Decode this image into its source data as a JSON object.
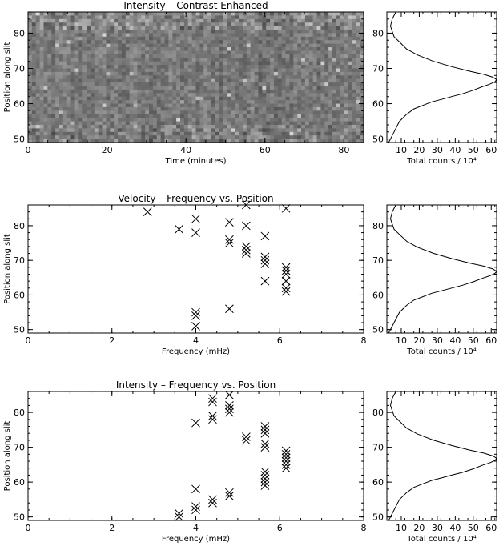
{
  "chart_data": [
    {
      "id": "intensity-image",
      "type": "heatmap",
      "title": "Intensity – Contrast Enhanced",
      "xlabel": "Time (minutes)",
      "ylabel": "Position along slit",
      "xlim": [
        0,
        85
      ],
      "ylim": [
        49,
        86
      ],
      "xticks": [
        0,
        20,
        40,
        60,
        80
      ],
      "yticks": [
        50,
        60,
        70,
        80
      ],
      "colormap": "grayscale"
    },
    {
      "id": "profile-1",
      "type": "line",
      "xlabel": "Total counts / 10⁴",
      "xlim": [
        2,
        63
      ],
      "ylim": [
        49,
        86
      ],
      "xticks": [
        10,
        20,
        30,
        40,
        50,
        60
      ],
      "yticks": [
        50,
        60,
        70,
        80
      ],
      "x": [
        3,
        6,
        9,
        13,
        17,
        22,
        27,
        33,
        38,
        44,
        50,
        55,
        59,
        62,
        63,
        61,
        56,
        48,
        38,
        28,
        19,
        13,
        9,
        6,
        5,
        4,
        5,
        7
      ],
      "y": [
        49,
        52,
        55,
        57,
        58.5,
        59.5,
        60.5,
        61.3,
        62,
        62.8,
        63.8,
        64.8,
        65.5,
        66.2,
        66.8,
        67.5,
        68.3,
        69.2,
        70.5,
        72,
        73.8,
        75.5,
        77.5,
        79,
        80.5,
        82,
        84,
        86
      ]
    },
    {
      "id": "velocity-freq",
      "type": "scatter",
      "title": "Velocity – Frequency vs. Position",
      "xlabel": "Frequency (mHz)",
      "ylabel": "Position along slit",
      "xlim": [
        0,
        8
      ],
      "ylim": [
        49,
        86
      ],
      "xticks": [
        0,
        2,
        4,
        6,
        8
      ],
      "yticks": [
        50,
        60,
        70,
        80
      ],
      "marker": "x",
      "points": [
        [
          2.85,
          84
        ],
        [
          3.6,
          79
        ],
        [
          4.0,
          82
        ],
        [
          4.0,
          78
        ],
        [
          4.0,
          55
        ],
        [
          4.0,
          54
        ],
        [
          4.0,
          51
        ],
        [
          4.8,
          81
        ],
        [
          4.8,
          76
        ],
        [
          4.8,
          75
        ],
        [
          4.8,
          56
        ],
        [
          5.2,
          80
        ],
        [
          5.2,
          86
        ],
        [
          5.2,
          74
        ],
        [
          5.2,
          73
        ],
        [
          5.2,
          72
        ],
        [
          5.65,
          77
        ],
        [
          5.65,
          71
        ],
        [
          5.65,
          70
        ],
        [
          5.65,
          69
        ],
        [
          5.65,
          64
        ],
        [
          6.15,
          85
        ],
        [
          6.15,
          68
        ],
        [
          6.15,
          67
        ],
        [
          6.15,
          66
        ],
        [
          6.15,
          64
        ],
        [
          6.15,
          62
        ],
        [
          6.15,
          61
        ]
      ]
    },
    {
      "id": "profile-2",
      "type": "line",
      "xlabel": "Total counts / 10⁴",
      "xlim": [
        2,
        63
      ],
      "ylim": [
        49,
        86
      ],
      "xticks": [
        10,
        20,
        30,
        40,
        50,
        60
      ],
      "yticks": [
        50,
        60,
        70,
        80
      ],
      "x": [
        3,
        6,
        9,
        13,
        17,
        22,
        27,
        33,
        38,
        44,
        50,
        55,
        59,
        62,
        63,
        61,
        56,
        48,
        38,
        28,
        19,
        13,
        9,
        6,
        5,
        4,
        5,
        7
      ],
      "y": [
        49,
        52,
        55,
        57,
        58.5,
        59.5,
        60.5,
        61.3,
        62,
        62.8,
        63.8,
        64.8,
        65.5,
        66.2,
        66.8,
        67.5,
        68.3,
        69.2,
        70.5,
        72,
        73.8,
        75.5,
        77.5,
        79,
        80.5,
        82,
        84,
        86
      ]
    },
    {
      "id": "intensity-freq",
      "type": "scatter",
      "title": "Intensity – Frequency vs. Position",
      "xlabel": "Frequency (mHz)",
      "ylabel": "Position along slit",
      "xlim": [
        0,
        8
      ],
      "ylim": [
        49,
        86
      ],
      "xticks": [
        0,
        2,
        4,
        6,
        8
      ],
      "yticks": [
        50,
        60,
        70,
        80
      ],
      "marker": "x",
      "points": [
        [
          3.6,
          51
        ],
        [
          3.6,
          50
        ],
        [
          4.0,
          77
        ],
        [
          4.0,
          58
        ],
        [
          4.0,
          53
        ],
        [
          4.0,
          52
        ],
        [
          4.4,
          84
        ],
        [
          4.4,
          83
        ],
        [
          4.4,
          79
        ],
        [
          4.4,
          78
        ],
        [
          4.4,
          55
        ],
        [
          4.4,
          54
        ],
        [
          4.8,
          85
        ],
        [
          4.8,
          82
        ],
        [
          4.8,
          81
        ],
        [
          4.8,
          80
        ],
        [
          4.8,
          57
        ],
        [
          4.8,
          56
        ],
        [
          5.2,
          73
        ],
        [
          5.2,
          72
        ],
        [
          5.65,
          76
        ],
        [
          5.65,
          75
        ],
        [
          5.65,
          74
        ],
        [
          5.65,
          71
        ],
        [
          5.65,
          70
        ],
        [
          5.65,
          63
        ],
        [
          5.65,
          62
        ],
        [
          5.65,
          61
        ],
        [
          5.65,
          60
        ],
        [
          5.65,
          59
        ],
        [
          6.15,
          69
        ],
        [
          6.15,
          68
        ],
        [
          6.15,
          67
        ],
        [
          6.15,
          66
        ],
        [
          6.15,
          65
        ],
        [
          6.15,
          64
        ]
      ]
    },
    {
      "id": "profile-3",
      "type": "line",
      "xlabel": "Total counts / 10⁴",
      "xlim": [
        2,
        63
      ],
      "ylim": [
        49,
        86
      ],
      "xticks": [
        10,
        20,
        30,
        40,
        50,
        60
      ],
      "yticks": [
        50,
        60,
        70,
        80
      ],
      "x": [
        3,
        6,
        9,
        13,
        17,
        22,
        27,
        33,
        38,
        44,
        50,
        55,
        59,
        62,
        63,
        61,
        56,
        48,
        38,
        28,
        19,
        13,
        9,
        6,
        5,
        4,
        5,
        7
      ],
      "y": [
        49,
        52,
        55,
        57,
        58.5,
        59.5,
        60.5,
        61.3,
        62,
        62.8,
        63.8,
        64.8,
        65.5,
        66.2,
        66.8,
        67.5,
        68.3,
        69.2,
        70.5,
        72,
        73.8,
        75.5,
        77.5,
        79,
        80.5,
        82,
        84,
        86
      ]
    }
  ]
}
